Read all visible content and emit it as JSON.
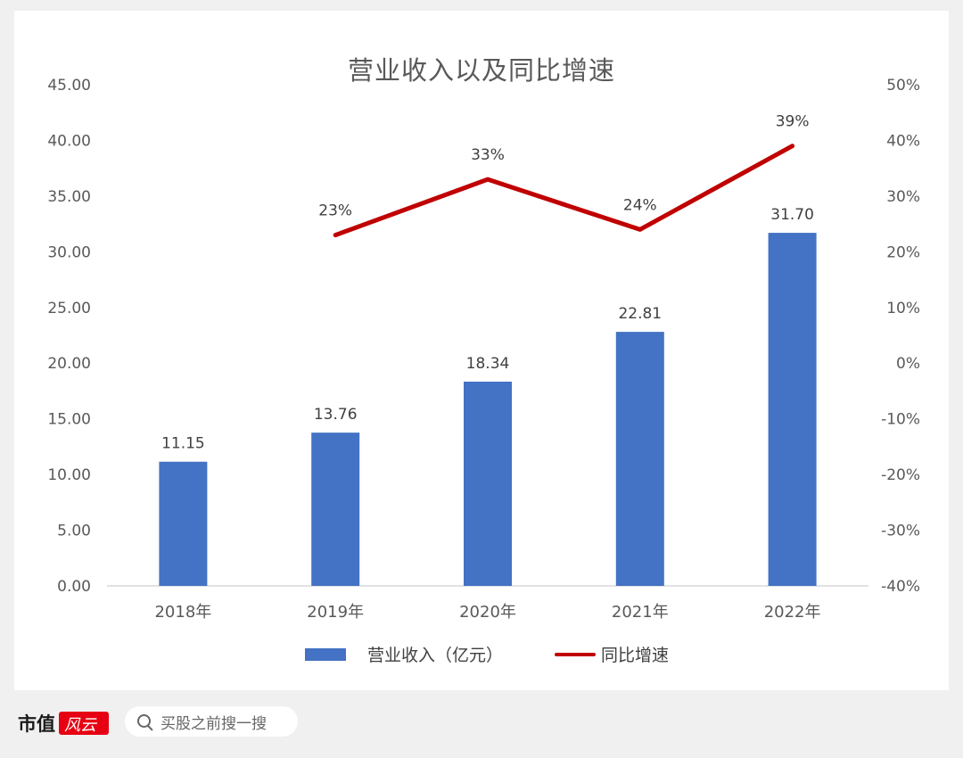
{
  "chart_data": {
    "type": "bar",
    "title": "营业收入以及同比增速",
    "categories": [
      "2018年",
      "2019年",
      "2020年",
      "2021年",
      "2022年"
    ],
    "y_left": {
      "ylim": [
        0,
        45
      ],
      "ticks": [
        "0.00",
        "5.00",
        "10.00",
        "15.00",
        "20.00",
        "25.00",
        "30.00",
        "35.00",
        "40.00",
        "45.00"
      ]
    },
    "y_right": {
      "ylim": [
        -40,
        50
      ],
      "ticks": [
        "-40%",
        "-30%",
        "-20%",
        "-10%",
        "0%",
        "10%",
        "20%",
        "30%",
        "40%",
        "50%"
      ]
    },
    "series": [
      {
        "name": "营业收入（亿元）",
        "type": "bar",
        "axis": "left",
        "color": "#4472c4",
        "values": [
          11.15,
          13.76,
          18.34,
          22.81,
          31.7
        ],
        "labels": [
          "11.15",
          "13.76",
          "18.34",
          "22.81",
          "31.70"
        ]
      },
      {
        "name": "同比增速",
        "type": "line",
        "axis": "right",
        "color": "#c00000",
        "values": [
          null,
          23,
          33,
          24,
          39
        ],
        "labels": [
          "",
          "23%",
          "33%",
          "24%",
          "39%"
        ]
      }
    ],
    "legend_position": "bottom",
    "grid": false
  },
  "footer": {
    "brand": "市值",
    "brand_mark": "风云",
    "search_placeholder": "买股之前搜一搜"
  }
}
